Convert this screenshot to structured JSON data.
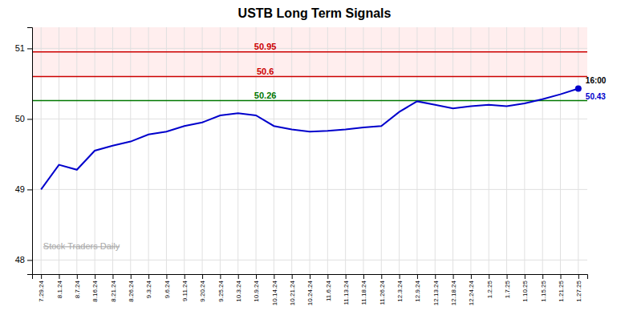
{
  "chart_data": {
    "type": "line",
    "title": "USTB Long Term Signals",
    "categories": [
      "7.29.24",
      "8.1.24",
      "8.7.24",
      "8.16.24",
      "8.21.24",
      "8.26.24",
      "9.3.24",
      "9.6.24",
      "9.11.24",
      "9.20.24",
      "9.25.24",
      "10.3.24",
      "10.9.24",
      "10.14.24",
      "10.21.24",
      "10.24.24",
      "11.6.24",
      "11.13.24",
      "11.18.24",
      "11.26.24",
      "12.3.24",
      "12.9.24",
      "12.13.24",
      "12.18.24",
      "12.24.24",
      "1.2.25",
      "1.7.25",
      "1.10.25",
      "1.15.25",
      "1.21.25",
      "1.27.25"
    ],
    "values": [
      49.0,
      49.35,
      49.28,
      49.55,
      49.62,
      49.68,
      49.78,
      49.82,
      49.9,
      49.95,
      50.05,
      50.08,
      50.05,
      49.9,
      49.85,
      49.82,
      49.83,
      49.85,
      49.88,
      49.9,
      50.1,
      50.25,
      50.2,
      50.15,
      50.18,
      50.2,
      50.18,
      50.22,
      50.28,
      50.35,
      50.43
    ],
    "color": "#0000cc",
    "ylim": [
      47.8,
      51.3
    ],
    "yticks": [
      48,
      49,
      50,
      51
    ],
    "grid": true,
    "reference_lines": [
      {
        "value": 50.95,
        "color": "#cc0000"
      },
      {
        "value": 50.6,
        "color": "#cc0000"
      },
      {
        "value": 50.26,
        "color": "#007700"
      }
    ],
    "bands": [
      {
        "range": [
          50.6,
          51.3
        ],
        "color": "#ffeeee"
      }
    ],
    "annotations": [
      "16:00",
      "Stock Traders Daily"
    ]
  }
}
